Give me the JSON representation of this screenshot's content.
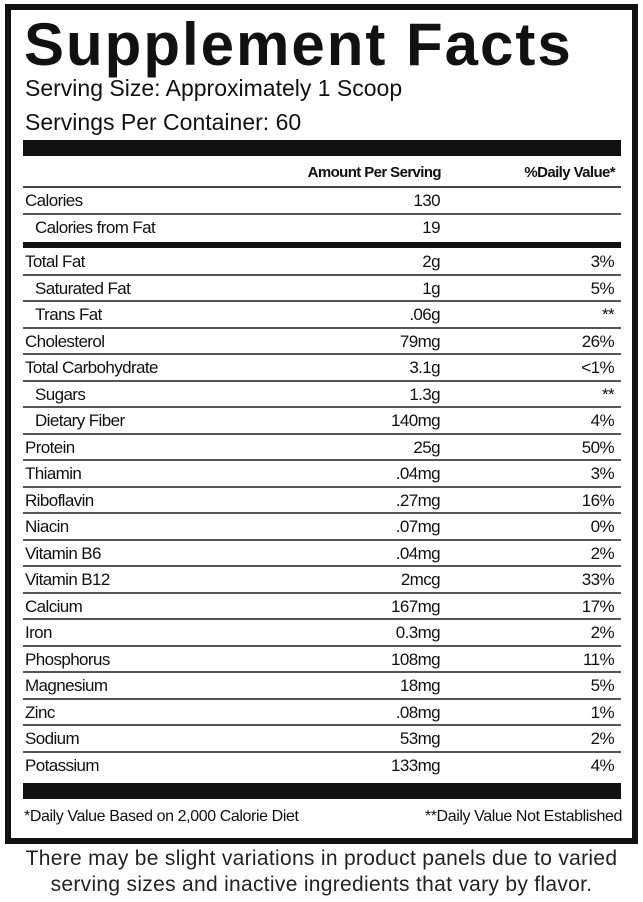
{
  "title": "Supplement Facts",
  "serving_size": "Serving Size: Approximately 1 Scoop",
  "servings_per_container": "Servings Per Container: 60",
  "header": {
    "amount": "Amount Per Serving",
    "dv": "%Daily Value*"
  },
  "calories_rows": [
    {
      "name": "Calories",
      "amount": "130",
      "dv": "",
      "indent": false
    },
    {
      "name": "Calories from Fat",
      "amount": "19",
      "dv": "",
      "indent": true
    }
  ],
  "nutrient_rows": [
    {
      "name": "Total Fat",
      "amount": "2g",
      "dv": "3%",
      "indent": false
    },
    {
      "name": "Saturated Fat",
      "amount": "1g",
      "dv": "5%",
      "indent": true
    },
    {
      "name": "Trans Fat",
      "amount": ".06g",
      "dv": "**",
      "indent": true
    },
    {
      "name": "Cholesterol",
      "amount": "79mg",
      "dv": "26%",
      "indent": false
    },
    {
      "name": "Total Carbohydrate",
      "amount": "3.1g",
      "dv": "<1%",
      "indent": false
    },
    {
      "name": "Sugars",
      "amount": "1.3g",
      "dv": "**",
      "indent": true
    },
    {
      "name": "Dietary Fiber",
      "amount": "140mg",
      "dv": "4%",
      "indent": true
    },
    {
      "name": "Protein",
      "amount": "25g",
      "dv": "50%",
      "indent": false
    },
    {
      "name": "Thiamin",
      "amount": ".04mg",
      "dv": "3%",
      "indent": false
    },
    {
      "name": "Riboflavin",
      "amount": ".27mg",
      "dv": "16%",
      "indent": false
    },
    {
      "name": "Niacin",
      "amount": ".07mg",
      "dv": "0%",
      "indent": false
    },
    {
      "name": "Vitamin B6",
      "amount": ".04mg",
      "dv": "2%",
      "indent": false
    },
    {
      "name": "Vitamin B12",
      "amount": "2mcg",
      "dv": "33%",
      "indent": false
    },
    {
      "name": "Calcium",
      "amount": "167mg",
      "dv": "17%",
      "indent": false
    },
    {
      "name": "Iron",
      "amount": "0.3mg",
      "dv": "2%",
      "indent": false
    },
    {
      "name": "Phosphorus",
      "amount": "108mg",
      "dv": "11%",
      "indent": false
    },
    {
      "name": "Magnesium",
      "amount": "18mg",
      "dv": "5%",
      "indent": false
    },
    {
      "name": "Zinc",
      "amount": ".08mg",
      "dv": "1%",
      "indent": false
    },
    {
      "name": "Sodium",
      "amount": "53mg",
      "dv": "2%",
      "indent": false
    },
    {
      "name": "Potassium",
      "amount": "133mg",
      "dv": "4%",
      "indent": false
    }
  ],
  "footnotes": {
    "dv_basis": "*Daily Value Based on 2,000 Calorie Diet",
    "not_established": "**Daily Value Not Established"
  },
  "disclaimer_line1": "There may be slight variations in product panels due to varied",
  "disclaimer_line2": "serving sizes and inactive ingredients that vary by flavor."
}
